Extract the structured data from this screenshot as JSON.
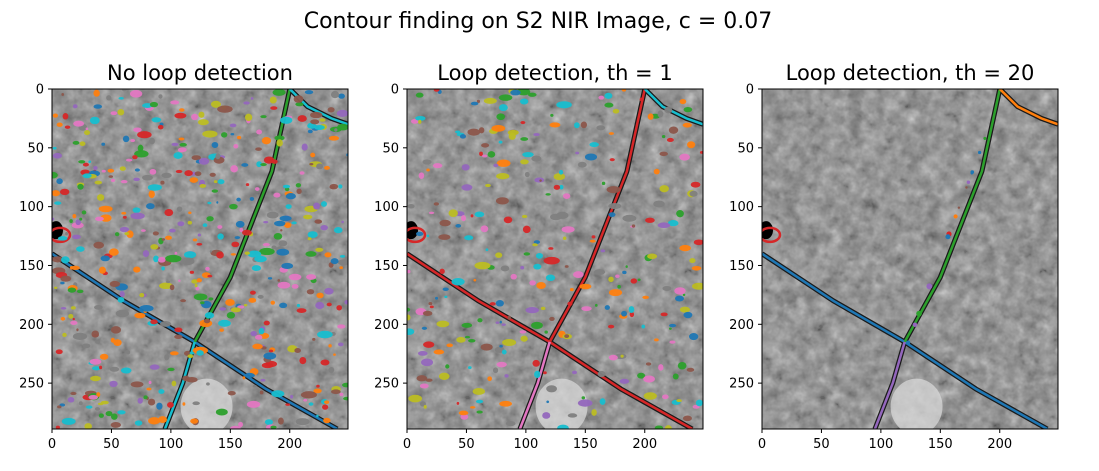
{
  "figure": {
    "title": "Contour finding on S2 NIR Image, c = 0.07"
  },
  "panels": [
    {
      "title": "No loop detection",
      "style": "dense",
      "contour_colors": [
        "#1f77b4",
        "#ff7f0e",
        "#2ca02c",
        "#d62728",
        "#9467bd",
        "#8c564b",
        "#e377c2",
        "#7f7f7f",
        "#bcbd22",
        "#17becf"
      ],
      "road_colors": {
        "nw_se": "#1f77b4",
        "sw_ne": "#2ca02c",
        "s_branch": "#17becf",
        "west_blob": "#d62728"
      }
    },
    {
      "title": "Loop detection, th = 1",
      "style": "medium",
      "contour_colors": [
        "#1f77b4",
        "#ff7f0e",
        "#2ca02c",
        "#d62728",
        "#9467bd",
        "#8c564b",
        "#e377c2",
        "#7f7f7f",
        "#bcbd22",
        "#17becf"
      ],
      "road_colors": {
        "nw_se": "#d62728",
        "sw_ne": "#d62728",
        "s_branch": "#e377c2",
        "west_blob": "#d62728"
      }
    },
    {
      "title": "Loop detection, th = 20",
      "style": "sparse",
      "contour_colors": [
        "#1f77b4",
        "#ff7f0e",
        "#2ca02c",
        "#d62728",
        "#9467bd",
        "#8c564b"
      ],
      "road_colors": {
        "nw_se": "#1f77b4",
        "sw_ne": "#2ca02c",
        "s_branch": "#9467bd",
        "west_blob": "#d62728"
      }
    }
  ],
  "axes": {
    "x_ticks": [
      "0",
      "50",
      "100",
      "150",
      "200"
    ],
    "y_ticks": [
      "0",
      "50",
      "100",
      "150",
      "200",
      "250"
    ],
    "x_range": [
      0,
      249
    ],
    "y_range": [
      0,
      289
    ]
  }
}
